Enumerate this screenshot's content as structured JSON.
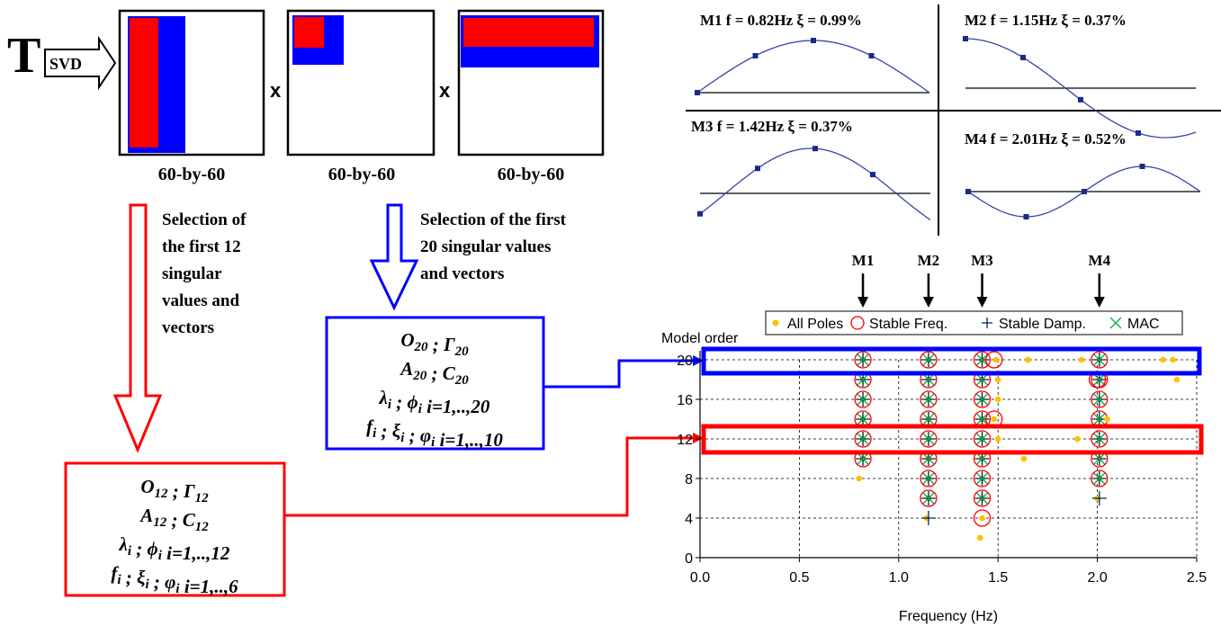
{
  "svd": {
    "t_label": "T",
    "arrow_label": "SVD",
    "times": "x",
    "matrix_labels": [
      "60-by-60",
      "60-by-60",
      "60-by-60"
    ]
  },
  "selection": {
    "left_text": [
      "Selection of",
      "the first 12",
      "singular",
      "values and",
      "vectors"
    ],
    "right_text": [
      "Selection of the first",
      "20 singular values",
      "and vectors"
    ]
  },
  "box20": [
    {
      "a": "O",
      "as": "20",
      "sep": " ; ",
      "b": "Γ",
      "bs": "20",
      "tail": ""
    },
    {
      "a": "A",
      "as": "20",
      "sep": " ; ",
      "b": "C",
      "bs": "20",
      "tail": ""
    },
    {
      "a": "λ",
      "as": "i",
      "sep": " ; ",
      "b": "ϕ",
      "bs": "i",
      "tail": "  i=1,..,20"
    },
    {
      "a": "f",
      "as": "i",
      "sep": " ; ",
      "b": "ξ",
      "bs": "i",
      "c": "φ",
      "cs": "i",
      "tail": "  i=1,..,10"
    }
  ],
  "box12": [
    {
      "a": "O",
      "as": "12",
      "sep": " ; ",
      "b": "Γ",
      "bs": "12",
      "tail": ""
    },
    {
      "a": "A",
      "as": "12",
      "sep": " ; ",
      "b": "C",
      "bs": "12",
      "tail": ""
    },
    {
      "a": "λ",
      "as": "i",
      "sep": " ; ",
      "b": "ϕ",
      "bs": "i",
      "tail": "  i=1,..,12"
    },
    {
      "a": "f",
      "as": "i",
      "sep": " ; ",
      "b": "ξ",
      "bs": "i",
      "c": "φ",
      "cs": "i",
      "tail": "  i=1,..,6"
    }
  ],
  "modes": [
    {
      "label": "M1  f = 0.82Hz  ξ = 0.99%"
    },
    {
      "label": "M2  f = 1.15Hz  ξ = 0.37%"
    },
    {
      "label": "M3  f = 1.42Hz  ξ = 0.37%"
    },
    {
      "label": "M4  f = 2.01Hz  ξ = 0.52%"
    }
  ],
  "colors": {
    "red": "#ff0000",
    "blue": "#0000ff",
    "pole": "#ffc000",
    "stable_freq": "#ff0000",
    "stable_damp": "#002060",
    "mac": "#00b050"
  },
  "chart_data": {
    "type": "scatter",
    "ylabel": "Model order",
    "xlabel": "Frequency (Hz)",
    "xlim": [
      0,
      2.5
    ],
    "ylim": [
      0,
      20
    ],
    "x_ticks": [
      "0.0",
      "0.5",
      "1.0",
      "1.5",
      "2.0",
      "2.5"
    ],
    "y_ticks": [
      "0",
      "4",
      "8",
      "12",
      "16",
      "20"
    ],
    "grid": true,
    "legend": [
      "All Poles",
      "Stable Freq.",
      "Stable Damp.",
      "MAC"
    ],
    "legend_position": "top",
    "mode_markers": [
      {
        "label": "M1",
        "x": 0.82
      },
      {
        "label": "M2",
        "x": 1.15
      },
      {
        "label": "M3",
        "x": 1.42
      },
      {
        "label": "M4",
        "x": 2.01
      }
    ],
    "stable_columns": [
      {
        "x": 0.82,
        "orders": [
          10,
          12,
          14,
          16,
          18,
          20
        ]
      },
      {
        "x": 1.15,
        "orders": [
          6,
          8,
          10,
          12,
          14,
          16,
          18,
          20
        ]
      },
      {
        "x": 1.42,
        "orders": [
          6,
          8,
          10,
          12,
          14,
          16,
          18,
          20
        ]
      },
      {
        "x": 2.01,
        "orders": [
          8,
          10,
          12,
          14,
          16,
          18,
          20
        ]
      }
    ],
    "extra_poles": [
      {
        "x": 0.8,
        "y": 8
      },
      {
        "x": 1.14,
        "y": 4
      },
      {
        "x": 1.42,
        "y": 4
      },
      {
        "x": 1.41,
        "y": 2
      },
      {
        "x": 1.49,
        "y": 20
      },
      {
        "x": 1.65,
        "y": 20
      },
      {
        "x": 1.92,
        "y": 20
      },
      {
        "x": 2.33,
        "y": 20
      },
      {
        "x": 2.38,
        "y": 20
      },
      {
        "x": 2.4,
        "y": 18
      },
      {
        "x": 1.5,
        "y": 18
      },
      {
        "x": 1.5,
        "y": 16
      },
      {
        "x": 1.48,
        "y": 14
      },
      {
        "x": 1.5,
        "y": 12
      },
      {
        "x": 1.63,
        "y": 10
      },
      {
        "x": 2.05,
        "y": 14
      },
      {
        "x": 1.9,
        "y": 12
      },
      {
        "x": 2.0,
        "y": 6
      }
    ],
    "extra_freq_circles": [
      {
        "x": 1.42,
        "y": 4
      },
      {
        "x": 1.48,
        "y": 20
      },
      {
        "x": 1.48,
        "y": 14
      },
      {
        "x": 2.0,
        "y": 18
      }
    ]
  }
}
